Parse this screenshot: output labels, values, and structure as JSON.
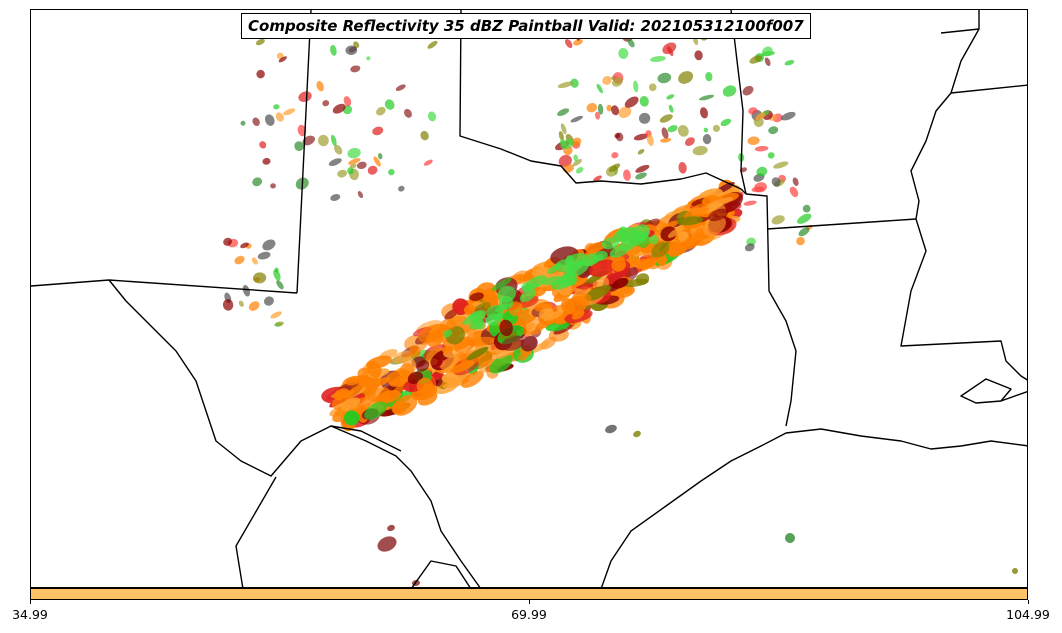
{
  "title": "Composite Reflectivity 35 dBZ Paintball Valid: 202105312100f007",
  "colors": {
    "boundary": "#000000",
    "colorbar_fill": "#ffc266",
    "paintball_palette": [
      "#ff8000",
      "#ffa030",
      "#e02020",
      "#ff4040",
      "#8b0000",
      "#8b2020",
      "#22cc22",
      "#44dd44",
      "#808000",
      "#a0a030",
      "#505050",
      "#2e8b2e"
    ]
  },
  "colorbar": {
    "ticks": [
      "34.99",
      "69.99",
      "104.99"
    ]
  },
  "map": {
    "region": "Texas and surrounding states",
    "features": [
      "state-boundaries",
      "coastline",
      "mississippi-river-border",
      "paintball-reflectivity-ensemble"
    ]
  }
}
